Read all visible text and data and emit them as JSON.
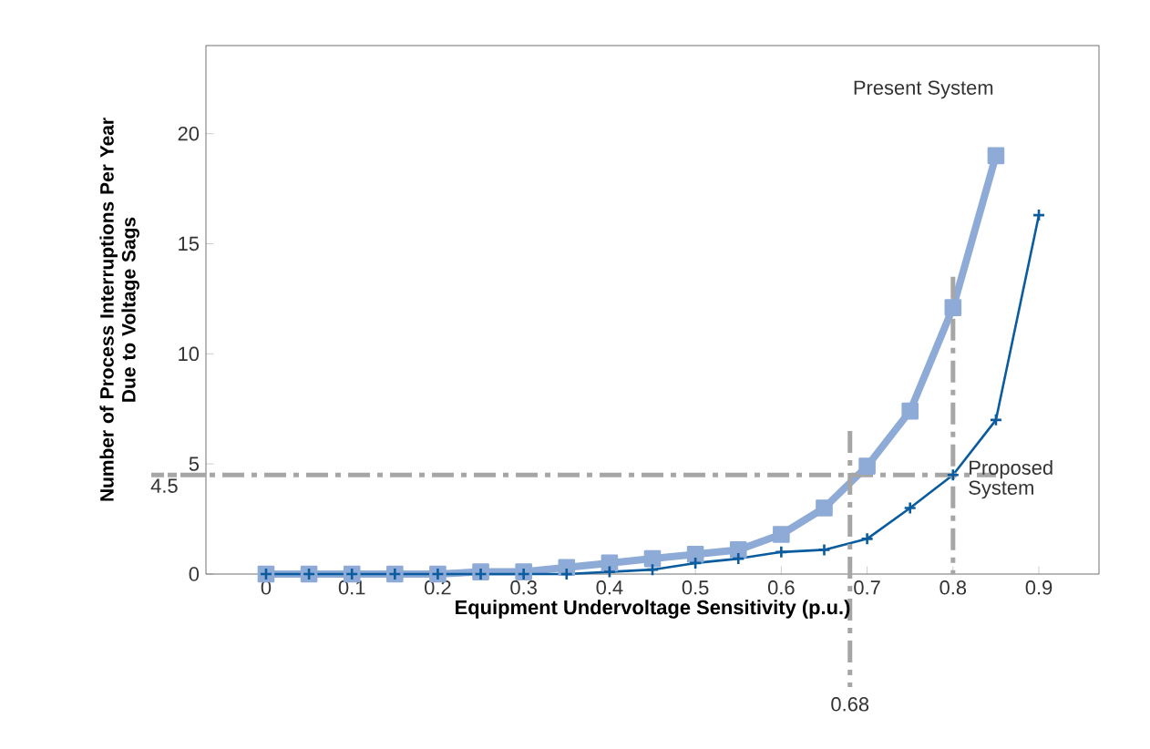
{
  "chart_data": {
    "type": "line",
    "xlabel": "Equipment Undervoltage Sensitivity (p.u.)",
    "ylabel": "Number of Process Interruptions Per Year\nDue to Voltage Sags",
    "x": [
      0,
      0.05,
      0.1,
      0.15,
      0.2,
      0.25,
      0.3,
      0.35,
      0.4,
      0.45,
      0.5,
      0.55,
      0.6,
      0.65,
      0.7,
      0.75,
      0.8,
      0.85,
      0.9
    ],
    "series": [
      {
        "name": "Present System",
        "color": "#8eaad6",
        "marker": "square",
        "values": [
          0,
          0,
          0,
          0,
          0,
          0.1,
          0.1,
          0.3,
          0.5,
          0.7,
          0.9,
          1.1,
          1.8,
          3,
          4.9,
          7.4,
          12.1,
          19,
          null
        ]
      },
      {
        "name": "Proposed System",
        "color": "#0b5c9e",
        "marker": "cross",
        "values": [
          0,
          0,
          0,
          0,
          0,
          0,
          0,
          0,
          0.1,
          0.2,
          0.5,
          0.7,
          1,
          1.1,
          1.6,
          3,
          4.5,
          7,
          16.3
        ]
      }
    ],
    "xlim": [
      -0.07,
      0.97
    ],
    "ylim": [
      0,
      24
    ],
    "xticks": [
      0,
      0.1,
      0.2,
      0.3,
      0.4,
      0.5,
      0.6,
      0.7,
      0.8,
      0.9
    ],
    "yticks": [
      0,
      5,
      10,
      15,
      20
    ],
    "ref_lines": [
      {
        "axis": "y",
        "value": 4.5,
        "label": "4.5",
        "color": "#a6a6a6",
        "line_style": "dashdot"
      },
      {
        "axis": "x",
        "value": 0.68,
        "label": "0.68",
        "color": "#a6a6a6",
        "line_style": "dashdot"
      },
      {
        "axis": "x",
        "value": 0.8,
        "label": null,
        "color": "#a6a6a6",
        "line_style": "dashdot"
      }
    ],
    "grid": false,
    "line_style": "solid"
  }
}
